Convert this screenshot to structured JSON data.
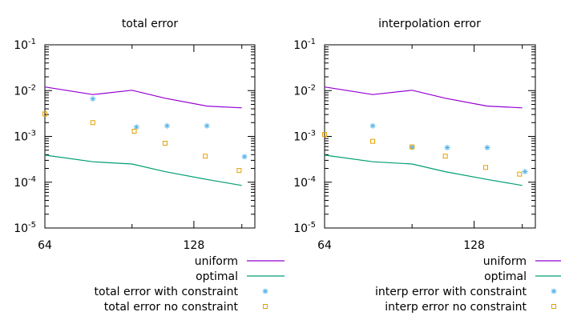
{
  "chart_data": [
    {
      "type": "line",
      "title": "total error",
      "xlabel": "",
      "ylabel": "",
      "xscale": "log",
      "yscale": "log",
      "xlim": [
        64,
        170
      ],
      "ylim": [
        1e-05,
        0.1
      ],
      "xticks": [
        {
          "value": 64,
          "label": "64"
        },
        {
          "value": 128,
          "label": "128"
        }
      ],
      "yticks": [
        {
          "value": 0.1,
          "base": "10",
          "exp": "-1"
        },
        {
          "value": 0.01,
          "base": "10",
          "exp": "-2"
        },
        {
          "value": 0.001,
          "base": "10",
          "exp": "-3"
        },
        {
          "value": 0.0001,
          "base": "10",
          "exp": "-4"
        },
        {
          "value": 1e-05,
          "base": "10",
          "exp": "-5"
        }
      ],
      "grid": false,
      "legend_position": "below-right",
      "series": [
        {
          "name": "uniform",
          "style": "line",
          "color": "#9400d3",
          "x": [
            64,
            80,
            96,
            112,
            136,
            160
          ],
          "y": [
            0.012,
            0.0082,
            0.0102,
            0.0068,
            0.0046,
            0.0042
          ]
        },
        {
          "name": "optimal",
          "style": "line",
          "color": "#009e73",
          "x": [
            64,
            80,
            96,
            112,
            136,
            160
          ],
          "y": [
            0.00039,
            0.00028,
            0.00025,
            0.00017,
            0.000115,
            8.5e-05
          ]
        },
        {
          "name": "total error with constraint",
          "style": "star",
          "color": "#56b4e9",
          "x": [
            80,
            98,
            113,
            136,
            162
          ],
          "y": [
            0.0066,
            0.0016,
            0.0017,
            0.0017,
            0.00036
          ]
        },
        {
          "name": "total error no constraint",
          "style": "square",
          "color": "#e69f00",
          "x": [
            64,
            80,
            97,
            112,
            135,
            158
          ],
          "y": [
            0.0031,
            0.002,
            0.0013,
            0.00071,
            0.00037,
            0.00018
          ]
        }
      ]
    },
    {
      "type": "line",
      "title": "interpolation error",
      "xlabel": "",
      "ylabel": "",
      "xscale": "log",
      "yscale": "log",
      "xlim": [
        64,
        170
      ],
      "ylim": [
        1e-05,
        0.1
      ],
      "xticks": [
        {
          "value": 64,
          "label": "64"
        },
        {
          "value": 128,
          "label": "128"
        }
      ],
      "yticks": [
        {
          "value": 0.1,
          "base": "10",
          "exp": "-1"
        },
        {
          "value": 0.01,
          "base": "10",
          "exp": "-2"
        },
        {
          "value": 0.001,
          "base": "10",
          "exp": "-3"
        },
        {
          "value": 0.0001,
          "base": "10",
          "exp": "-4"
        },
        {
          "value": 1e-05,
          "base": "10",
          "exp": "-5"
        }
      ],
      "grid": false,
      "legend_position": "below-right",
      "series": [
        {
          "name": "uniform",
          "style": "line",
          "color": "#9400d3",
          "x": [
            64,
            80,
            96,
            112,
            136,
            160
          ],
          "y": [
            0.012,
            0.0082,
            0.0102,
            0.0068,
            0.0046,
            0.0042
          ]
        },
        {
          "name": "optimal",
          "style": "line",
          "color": "#009e73",
          "x": [
            64,
            80,
            96,
            112,
            136,
            160
          ],
          "y": [
            0.00039,
            0.00028,
            0.00025,
            0.00017,
            0.000115,
            8.5e-05
          ]
        },
        {
          "name": "interp error with constraint",
          "style": "star",
          "color": "#56b4e9",
          "x": [
            80,
            96,
            113,
            136,
            162
          ],
          "y": [
            0.0017,
            0.00058,
            0.00057,
            0.00057,
            0.00017
          ]
        },
        {
          "name": "interp error no constraint",
          "style": "square",
          "color": "#e69f00",
          "x": [
            64,
            80,
            96,
            112,
            135,
            158
          ],
          "y": [
            0.0011,
            0.00078,
            0.00059,
            0.00037,
            0.00021,
            0.00015
          ]
        }
      ]
    }
  ]
}
